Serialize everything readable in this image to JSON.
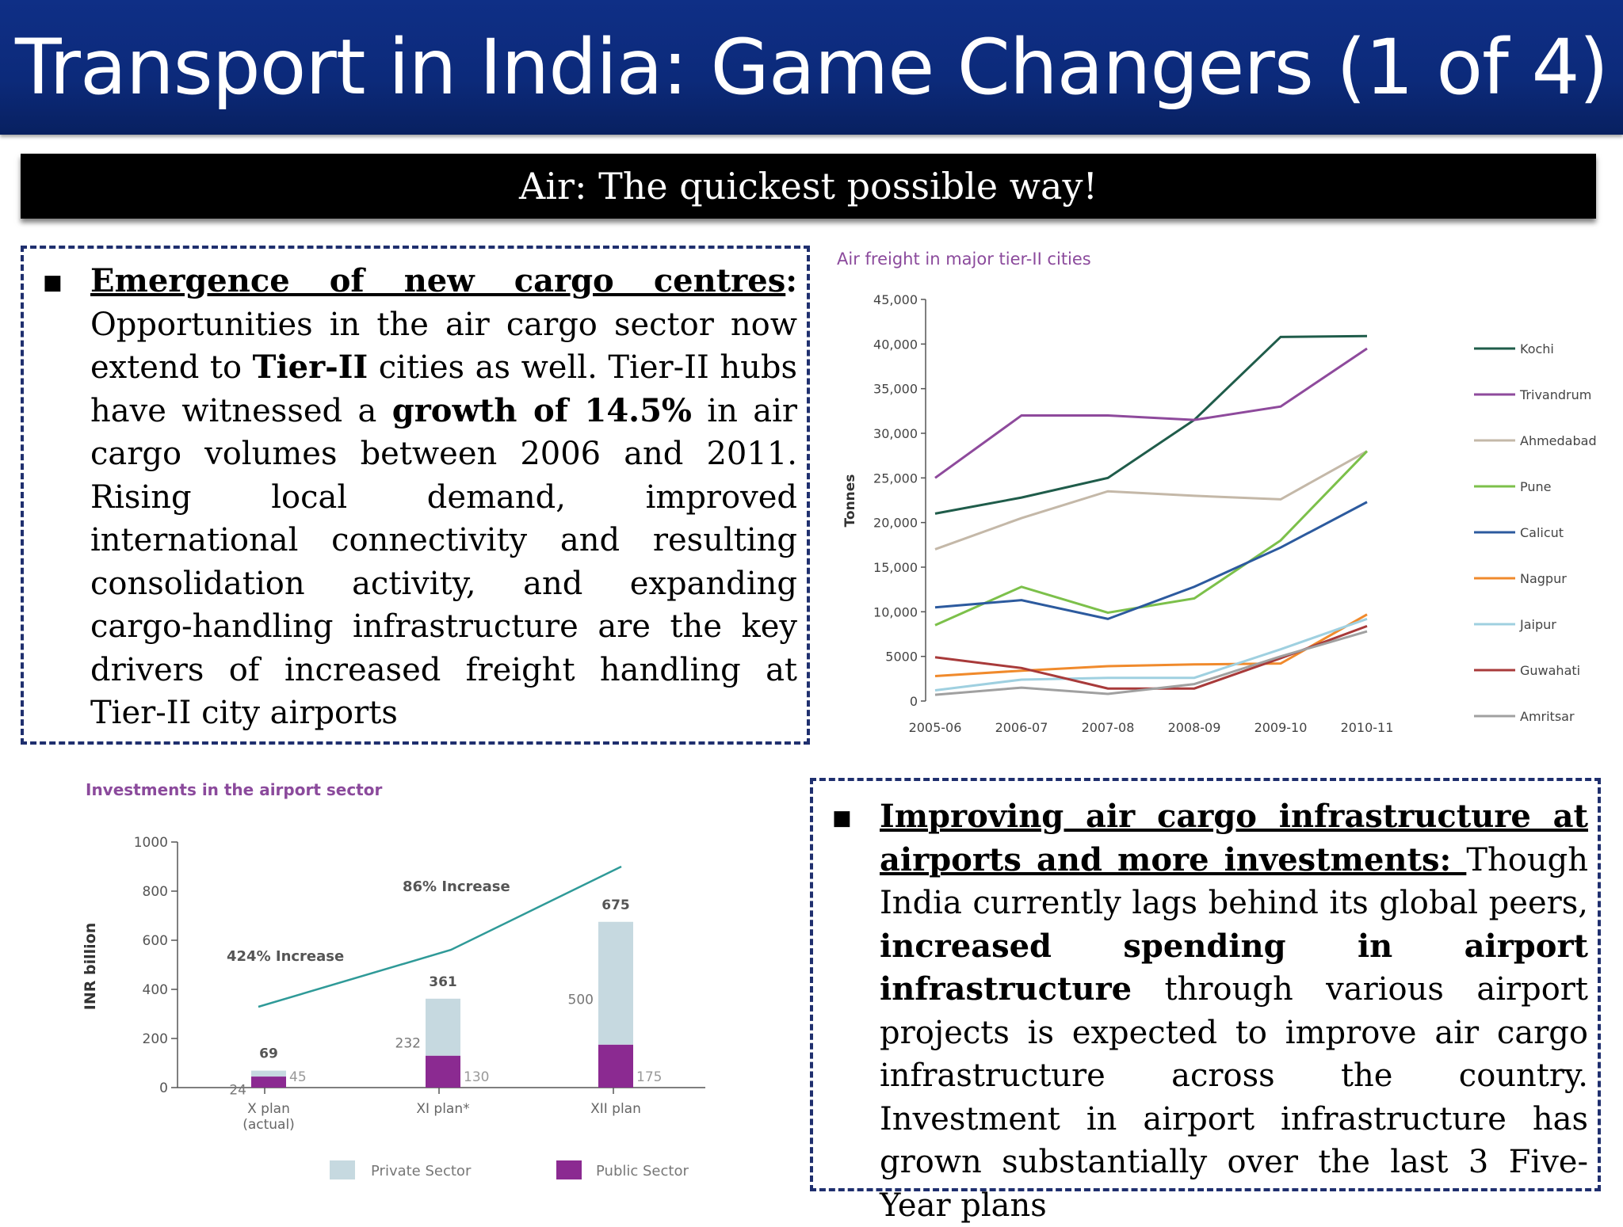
{
  "header": {
    "title": "Transport in India: Game Changers (1 of 4)"
  },
  "subheader": {
    "title": "Air: The quickest possible way!"
  },
  "box1": {
    "heading": "Emergence of new cargo centres",
    "heading_colon": ":",
    "text_1": " Opportunities in the air cargo sector now extend to ",
    "bold_1": "Tier-II",
    "text_2": " cities as well. Tier-II hubs have witnessed a ",
    "bold_2": "growth of 14.5%",
    "text_3": " in air cargo volumes between 2006 and 2011. Rising local demand, improved international connectivity and resulting consolidation activity, and expanding cargo-handling infrastructure are the key drivers of increased freight handling at Tier-II city airports"
  },
  "box2": {
    "heading": "Improving air cargo infrastructure at airports and more investments: ",
    "text_1": "Though India currently lags behind its global peers, ",
    "bold_1": "increased spending in airport infrastructure",
    "text_2": " through various airport projects is expected to improve air cargo infrastructure across the country. Investment in airport infrastructure has grown substantially over the last 3 Five-Year plans"
  },
  "chart_data": [
    {
      "type": "line",
      "title": "Air freight in major tier-II cities",
      "ylabel": "Tonnes",
      "xlabel": "",
      "x": [
        "2005-06",
        "2006-07",
        "2007-08",
        "2008-09",
        "2009-10",
        "2010-11"
      ],
      "ylim": [
        0,
        45000
      ],
      "yticks": [
        0,
        5000,
        10000,
        15000,
        20000,
        25000,
        30000,
        35000,
        40000,
        45000
      ],
      "ytick_labels": [
        "0",
        "5000",
        "10,000",
        "15,000",
        "20,000",
        "25,000",
        "30,000",
        "35,000",
        "40,000",
        "45,000"
      ],
      "legend_position": "right",
      "series": [
        {
          "name": "Kochi",
          "color": "#1f5c4a",
          "values": [
            21000,
            22800,
            25000,
            31500,
            40800,
            40900
          ]
        },
        {
          "name": "Trivandrum",
          "color": "#8e4a9c",
          "values": [
            25000,
            32000,
            32000,
            31500,
            33000,
            39500
          ]
        },
        {
          "name": "Ahmedabad",
          "color": "#c4b8a8",
          "values": [
            17000,
            20500,
            23500,
            23000,
            22600,
            28000
          ]
        },
        {
          "name": "Pune",
          "color": "#7cc04a",
          "values": [
            8500,
            12800,
            9900,
            11500,
            18000,
            28000
          ]
        },
        {
          "name": "Calicut",
          "color": "#2c5a9e",
          "values": [
            10500,
            11300,
            9200,
            12800,
            17200,
            22300
          ]
        },
        {
          "name": "Nagpur",
          "color": "#f08a2c",
          "values": [
            2800,
            3400,
            3900,
            4100,
            4200,
            9700
          ]
        },
        {
          "name": "Jaipur",
          "color": "#9fd0e0",
          "values": [
            1200,
            2400,
            2600,
            2600,
            5800,
            9200
          ]
        },
        {
          "name": "Guwahati",
          "color": "#a83a3a",
          "values": [
            4900,
            3700,
            1400,
            1400,
            4800,
            8400
          ]
        },
        {
          "name": "Amritsar",
          "color": "#a0a0a0",
          "values": [
            700,
            1500,
            800,
            1900,
            5000,
            7800
          ]
        }
      ]
    },
    {
      "type": "bar",
      "title": "Investments in the airport sector",
      "ylabel": "INR billion",
      "xlabel": "",
      "categories": [
        "X plan\n(actual)",
        "XI plan*",
        "XII plan"
      ],
      "ylim": [
        0,
        1000
      ],
      "yticks": [
        0,
        200,
        400,
        600,
        800,
        1000
      ],
      "stacked": true,
      "series": [
        {
          "name": "Public Sector",
          "color": "#8b2a91",
          "values": [
            45,
            130,
            175
          ]
        },
        {
          "name": "Private Sector",
          "color": "#c6d9e0",
          "values": [
            24,
            232,
            500
          ]
        }
      ],
      "totals": [
        69,
        361,
        675
      ],
      "trend_labels": [
        "424% Increase",
        "86% Increase"
      ]
    }
  ]
}
